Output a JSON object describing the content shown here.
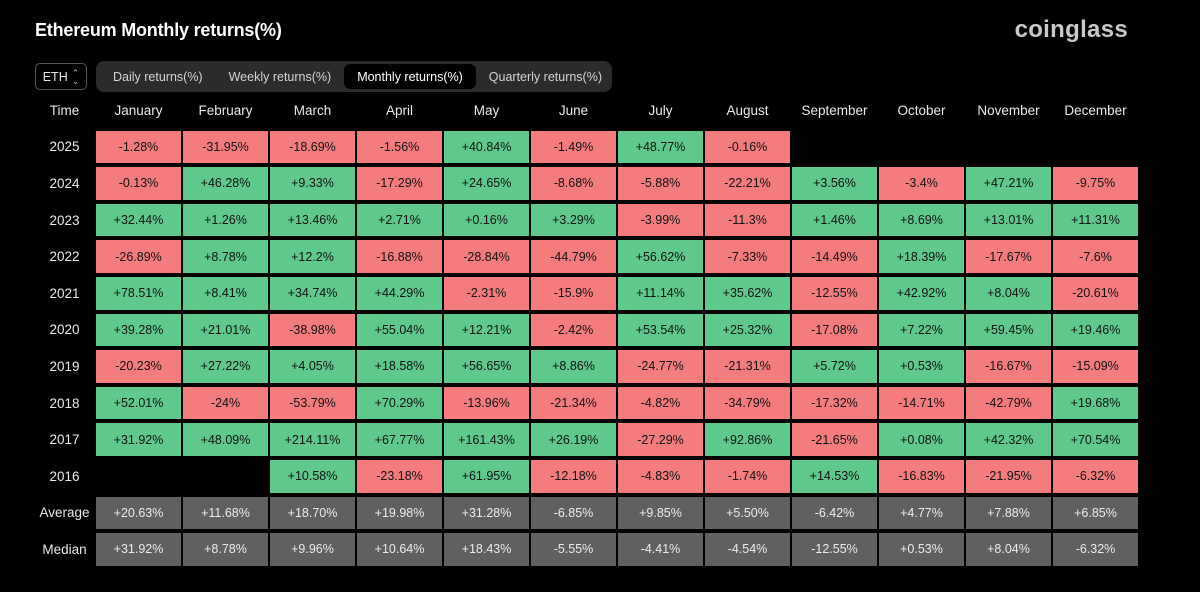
{
  "header": {
    "title": "Ethereum Monthly returns(%)",
    "logo": "coinglass"
  },
  "asset_select": {
    "value": "ETH"
  },
  "tabs": [
    {
      "label": "Daily returns(%)",
      "active": false
    },
    {
      "label": "Weekly returns(%)",
      "active": false
    },
    {
      "label": "Monthly returns(%)",
      "active": true
    },
    {
      "label": "Quarterly returns(%)",
      "active": false
    }
  ],
  "colors": {
    "positive": "#5ec98a",
    "negative": "#f47c7c",
    "stat": "#606060",
    "background": "#000000"
  },
  "chart_data": {
    "type": "heatmap",
    "corner_label": "Time",
    "columns": [
      "January",
      "February",
      "March",
      "April",
      "May",
      "June",
      "July",
      "August",
      "September",
      "October",
      "November",
      "December"
    ],
    "rows": [
      {
        "label": "2025",
        "values": [
          "-1.28%",
          "-31.95%",
          "-18.69%",
          "-1.56%",
          "+40.84%",
          "-1.49%",
          "+48.77%",
          "-0.16%",
          "",
          "",
          "",
          ""
        ]
      },
      {
        "label": "2024",
        "values": [
          "-0.13%",
          "+46.28%",
          "+9.33%",
          "-17.29%",
          "+24.65%",
          "-8.68%",
          "-5.88%",
          "-22.21%",
          "+3.56%",
          "-3.4%",
          "+47.21%",
          "-9.75%"
        ]
      },
      {
        "label": "2023",
        "values": [
          "+32.44%",
          "+1.26%",
          "+13.46%",
          "+2.71%",
          "+0.16%",
          "+3.29%",
          "-3.99%",
          "-11.3%",
          "+1.46%",
          "+8.69%",
          "+13.01%",
          "+11.31%"
        ]
      },
      {
        "label": "2022",
        "values": [
          "-26.89%",
          "+8.78%",
          "+12.2%",
          "-16.88%",
          "-28.84%",
          "-44.79%",
          "+56.62%",
          "-7.33%",
          "-14.49%",
          "+18.39%",
          "-17.67%",
          "-7.6%"
        ]
      },
      {
        "label": "2021",
        "values": [
          "+78.51%",
          "+8.41%",
          "+34.74%",
          "+44.29%",
          "-2.31%",
          "-15.9%",
          "+11.14%",
          "+35.62%",
          "-12.55%",
          "+42.92%",
          "+8.04%",
          "-20.61%"
        ]
      },
      {
        "label": "2020",
        "values": [
          "+39.28%",
          "+21.01%",
          "-38.98%",
          "+55.04%",
          "+12.21%",
          "-2.42%",
          "+53.54%",
          "+25.32%",
          "-17.08%",
          "+7.22%",
          "+59.45%",
          "+19.46%"
        ]
      },
      {
        "label": "2019",
        "values": [
          "-20.23%",
          "+27.22%",
          "+4.05%",
          "+18.58%",
          "+56.65%",
          "+8.86%",
          "-24.77%",
          "-21.31%",
          "+5.72%",
          "+0.53%",
          "-16.67%",
          "-15.09%"
        ]
      },
      {
        "label": "2018",
        "values": [
          "+52.01%",
          "-24%",
          "-53.79%",
          "+70.29%",
          "-13.96%",
          "-21.34%",
          "-4.82%",
          "-34.79%",
          "-17.32%",
          "-14.71%",
          "-42.79%",
          "+19.68%"
        ]
      },
      {
        "label": "2017",
        "values": [
          "+31.92%",
          "+48.09%",
          "+214.11%",
          "+67.77%",
          "+161.43%",
          "+26.19%",
          "-27.29%",
          "+92.86%",
          "-21.65%",
          "+0.08%",
          "+42.32%",
          "+70.54%"
        ]
      },
      {
        "label": "2016",
        "values": [
          "",
          "",
          "+10.58%",
          "-23.18%",
          "+61.95%",
          "-12.18%",
          "-4.83%",
          "-1.74%",
          "+14.53%",
          "-16.83%",
          "-21.95%",
          "-6.32%"
        ]
      }
    ],
    "summary_rows": [
      {
        "label": "Average",
        "values": [
          "+20.63%",
          "+11.68%",
          "+18.70%",
          "+19.98%",
          "+31.28%",
          "-6.85%",
          "+9.85%",
          "+5.50%",
          "-6.42%",
          "+4.77%",
          "+7.88%",
          "+6.85%"
        ]
      },
      {
        "label": "Median",
        "values": [
          "+31.92%",
          "+8.78%",
          "+9.96%",
          "+10.64%",
          "+18.43%",
          "-5.55%",
          "-4.41%",
          "-4.54%",
          "-12.55%",
          "+0.53%",
          "+8.04%",
          "-6.32%"
        ]
      }
    ]
  }
}
